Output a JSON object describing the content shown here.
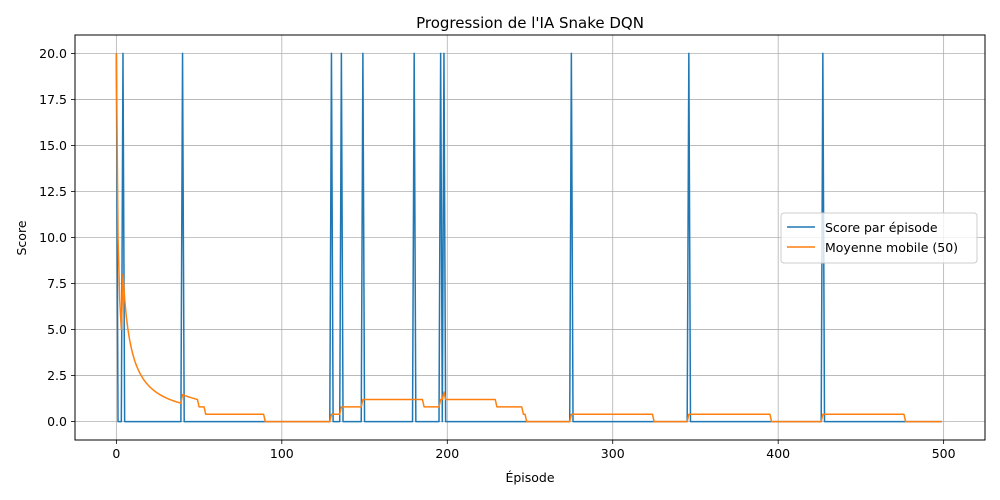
{
  "chart_data": {
    "type": "line",
    "title": "Progression de l'IA Snake DQN",
    "xlabel": "Épisode",
    "ylabel": "Score",
    "xlim": [
      -25,
      525
    ],
    "ylim": [
      -1,
      21
    ],
    "xticks": [
      0,
      100,
      200,
      300,
      400,
      500
    ],
    "xtick_labels": [
      "0",
      "100",
      "200",
      "300",
      "400",
      "500"
    ],
    "yticks": [
      0,
      2.5,
      5,
      7.5,
      10,
      12.5,
      15,
      17.5,
      20
    ],
    "ytick_labels": [
      "0.0",
      "2.5",
      "5.0",
      "7.5",
      "10.0",
      "12.5",
      "15.0",
      "17.5",
      "20.0"
    ],
    "grid": true,
    "legend_position": "center-right",
    "n_episodes": 500,
    "series": [
      {
        "name": "Score par épisode",
        "color": "#1f77b4",
        "spike_value": 20,
        "base_value": 0,
        "spike_episodes": [
          0,
          4,
          40,
          130,
          136,
          149,
          180,
          196,
          198,
          275,
          346,
          427
        ]
      },
      {
        "name": "Moyenne mobile (50)",
        "color": "#ff7f0e",
        "window": 50
      }
    ]
  }
}
